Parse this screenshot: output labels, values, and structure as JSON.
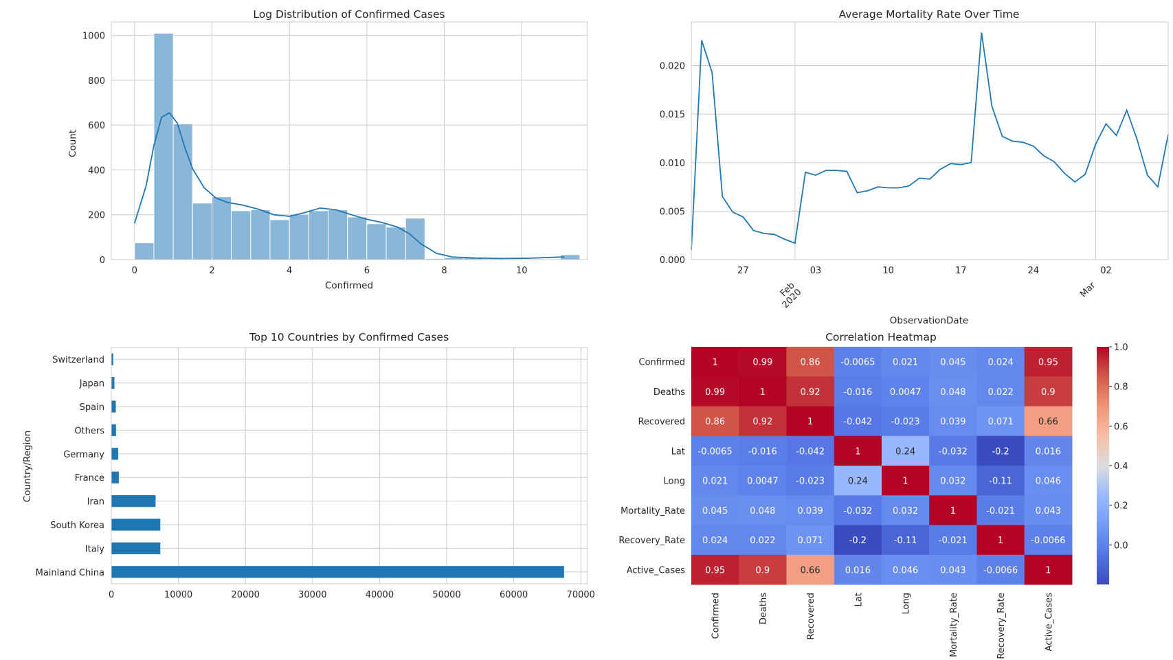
{
  "chart_data": [
    {
      "type": "bar",
      "title": "Log Distribution of Confirmed Cases",
      "xlabel": "Confirmed",
      "ylabel": "Count",
      "xlim": [
        -0.6,
        11.7
      ],
      "ylim": [
        0,
        1060
      ],
      "grid": true,
      "bin_edges": [
        0,
        0.5,
        1,
        1.5,
        2,
        2.5,
        3,
        3.5,
        4,
        4.5,
        5,
        5.5,
        6,
        6.5,
        7,
        7.5,
        8,
        8.5,
        9,
        9.5,
        10,
        10.5,
        11,
        11.5
      ],
      "values": [
        75,
        1010,
        605,
        252,
        280,
        218,
        222,
        178,
        202,
        218,
        222,
        190,
        160,
        145,
        185,
        5,
        8,
        8,
        4,
        2,
        2,
        3,
        22
      ],
      "kde": {
        "x": [
          0,
          0.3,
          0.5,
          0.7,
          0.9,
          1.1,
          1.3,
          1.5,
          1.8,
          2.1,
          2.4,
          2.8,
          3.2,
          3.6,
          4.0,
          4.4,
          4.8,
          5.2,
          5.6,
          6.0,
          6.4,
          6.8,
          7.1,
          7.4,
          7.8,
          8.2,
          8.8,
          9.5,
          10.2,
          10.8,
          11.1
        ],
        "y": [
          162,
          330,
          510,
          635,
          655,
          610,
          500,
          405,
          320,
          275,
          255,
          243,
          225,
          200,
          193,
          210,
          230,
          222,
          200,
          180,
          165,
          145,
          115,
          70,
          28,
          12,
          7,
          5,
          6,
          10,
          12
        ]
      },
      "xticks": [
        "0",
        "2",
        "4",
        "6",
        "8",
        "10"
      ],
      "yticks": [
        "0",
        "200",
        "400",
        "600",
        "800",
        "1000"
      ],
      "colors": {
        "bar": "#8ab7d8",
        "line": "#1f77b4"
      }
    },
    {
      "type": "line",
      "title": "Average Mortality Rate Over Time",
      "xlabel": "ObservationDate",
      "ylabel": "",
      "x": [
        "2020-01-22",
        "2020-01-23",
        "2020-01-24",
        "2020-01-25",
        "2020-01-26",
        "2020-01-27",
        "2020-01-28",
        "2020-01-29",
        "2020-01-30",
        "2020-01-31",
        "2020-02-01",
        "2020-02-02",
        "2020-02-03",
        "2020-02-04",
        "2020-02-05",
        "2020-02-06",
        "2020-02-07",
        "2020-02-08",
        "2020-02-09",
        "2020-02-10",
        "2020-02-11",
        "2020-02-12",
        "2020-02-13",
        "2020-02-14",
        "2020-02-15",
        "2020-02-16",
        "2020-02-17",
        "2020-02-18",
        "2020-02-19",
        "2020-02-20",
        "2020-02-21",
        "2020-02-22",
        "2020-02-23",
        "2020-02-24",
        "2020-02-25",
        "2020-02-26",
        "2020-02-27",
        "2020-02-28",
        "2020-02-29",
        "2020-03-01",
        "2020-03-02",
        "2020-03-03",
        "2020-03-04",
        "2020-03-05",
        "2020-03-06",
        "2020-03-07",
        "2020-03-08"
      ],
      "y": [
        0.001,
        0.0226,
        0.0193,
        0.0065,
        0.0049,
        0.0044,
        0.003,
        0.0027,
        0.0026,
        0.0021,
        0.0017,
        0.009,
        0.0087,
        0.0092,
        0.0092,
        0.0091,
        0.0069,
        0.0071,
        0.0075,
        0.0074,
        0.0074,
        0.0076,
        0.0084,
        0.0083,
        0.0093,
        0.0099,
        0.0098,
        0.01,
        0.0234,
        0.0158,
        0.0127,
        0.0122,
        0.0121,
        0.0117,
        0.0107,
        0.0101,
        0.0089,
        0.008,
        0.0088,
        0.0119,
        0.014,
        0.0128,
        0.0154,
        0.0124,
        0.0087,
        0.0075,
        0.0129
      ],
      "ylim": [
        0.0,
        0.0245
      ],
      "grid": true,
      "yticks": [
        "0.000",
        "0.005",
        "0.010",
        "0.015",
        "0.020"
      ],
      "xticks": [
        {
          "date": "2020-01-27",
          "label": "27"
        },
        {
          "date": "2020-02-03",
          "label": "03"
        },
        {
          "date": "2020-02-10",
          "label": "10"
        },
        {
          "date": "2020-02-17",
          "label": "17"
        },
        {
          "date": "2020-02-24",
          "label": "24"
        },
        {
          "date": "2020-03-02",
          "label": "02"
        }
      ],
      "major_xticks": [
        {
          "date": "2020-02-01",
          "label": "Feb\n2020"
        },
        {
          "date": "2020-03-01",
          "label": "Mar"
        }
      ],
      "colors": {
        "line": "#1f77b4"
      }
    },
    {
      "type": "bar",
      "orientation": "horizontal",
      "title": "Top 10 Countries by Confirmed Cases",
      "xlabel": "",
      "ylabel": "Country/Region",
      "categories": [
        "Mainland China",
        "Italy",
        "South Korea",
        "Iran",
        "France",
        "Germany",
        "Others",
        "Spain",
        "Japan",
        "Switzerland"
      ],
      "values": [
        67500,
        7300,
        7300,
        6600,
        1120,
        1030,
        700,
        670,
        460,
        280
      ],
      "xlim": [
        0,
        71000
      ],
      "grid": true,
      "xticks": [
        "0",
        "10000",
        "20000",
        "30000",
        "40000",
        "50000",
        "60000",
        "70000"
      ],
      "colors": {
        "bar": "#1f77b4"
      }
    },
    {
      "type": "heatmap",
      "title": "Correlation Heatmap",
      "rows": [
        "Confirmed",
        "Deaths",
        "Recovered",
        "Lat",
        "Long",
        "Mortality_Rate",
        "Recovery_Rate",
        "Active_Cases"
      ],
      "cols": [
        "Confirmed",
        "Deaths",
        "Recovered",
        "Lat",
        "Long",
        "Mortality_Rate",
        "Recovery_Rate",
        "Active_Cases"
      ],
      "values": [
        [
          1,
          0.99,
          0.86,
          -0.0065,
          0.021,
          0.045,
          0.024,
          0.95
        ],
        [
          0.99,
          1,
          0.92,
          -0.016,
          0.0047,
          0.048,
          0.022,
          0.9
        ],
        [
          0.86,
          0.92,
          1,
          -0.042,
          -0.023,
          0.039,
          0.071,
          0.66
        ],
        [
          -0.0065,
          -0.016,
          -0.042,
          1,
          0.24,
          -0.032,
          -0.2,
          0.016
        ],
        [
          0.021,
          0.0047,
          -0.023,
          0.24,
          1,
          0.032,
          -0.11,
          0.046
        ],
        [
          0.045,
          0.048,
          0.039,
          -0.032,
          0.032,
          1,
          -0.021,
          0.043
        ],
        [
          0.024,
          0.022,
          0.071,
          -0.2,
          -0.11,
          -0.021,
          1,
          -0.0066
        ],
        [
          0.95,
          0.9,
          0.66,
          0.016,
          0.046,
          0.043,
          -0.0066,
          1
        ]
      ],
      "labels": [
        [
          "1",
          "0.99",
          "0.86",
          "-0.0065",
          "0.021",
          "0.045",
          "0.024",
          "0.95"
        ],
        [
          "0.99",
          "1",
          "0.92",
          "-0.016",
          "0.0047",
          "0.048",
          "0.022",
          "0.9"
        ],
        [
          "0.86",
          "0.92",
          "1",
          "-0.042",
          "-0.023",
          "0.039",
          "0.071",
          "0.66"
        ],
        [
          "-0.0065",
          "-0.016",
          "-0.042",
          "1",
          "0.24",
          "-0.032",
          "-0.2",
          "0.016"
        ],
        [
          "0.021",
          "0.0047",
          "-0.023",
          "0.24",
          "1",
          "0.032",
          "-0.11",
          "0.046"
        ],
        [
          "0.045",
          "0.048",
          "0.039",
          "-0.032",
          "0.032",
          "1",
          "-0.021",
          "0.043"
        ],
        [
          "0.024",
          "0.022",
          "0.071",
          "-0.2",
          "-0.11",
          "-0.021",
          "1",
          "-0.0066"
        ],
        [
          "0.95",
          "0.9",
          "0.66",
          "0.016",
          "0.046",
          "0.043",
          "-0.0066",
          "1"
        ]
      ],
      "vmin": -0.2,
      "vmax": 1.0,
      "colormap": "coolwarm",
      "colorbar_ticks": [
        "0.0",
        "0.2",
        "0.4",
        "0.6",
        "0.8",
        "1.0"
      ]
    }
  ]
}
